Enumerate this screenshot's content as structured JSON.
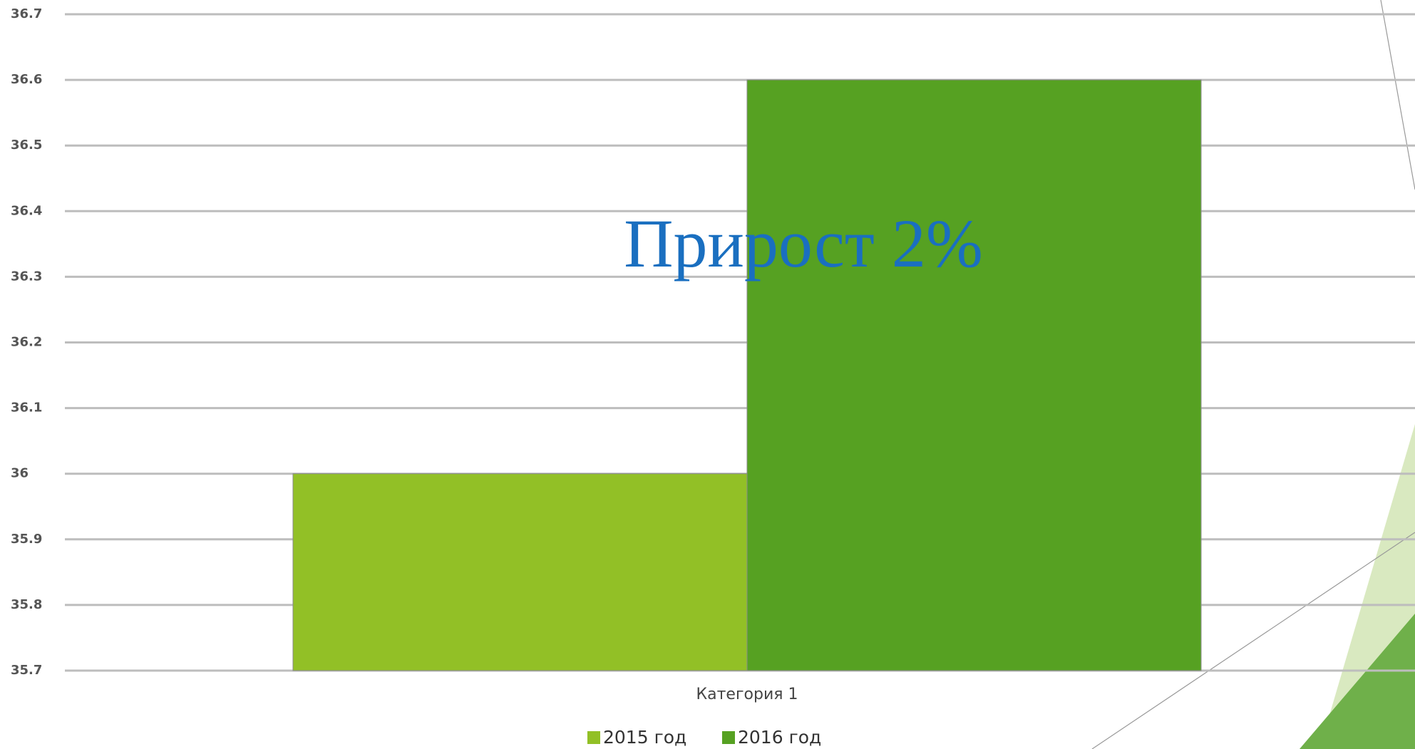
{
  "chart_data": {
    "type": "bar",
    "categories": [
      "Категория 1"
    ],
    "series": [
      {
        "name": "2015 год",
        "color": "#92c026",
        "values": [
          36
        ]
      },
      {
        "name": "2016 год",
        "color": "#56a122",
        "values": [
          36.6
        ]
      }
    ],
    "ylim": [
      35.7,
      36.7
    ],
    "yticks": [
      35.7,
      35.8,
      35.9,
      36,
      36.1,
      36.2,
      36.3,
      36.4,
      36.5,
      36.6,
      36.7
    ],
    "grid": true,
    "legend": "bottom",
    "annotation": "Прирост 2%"
  }
}
